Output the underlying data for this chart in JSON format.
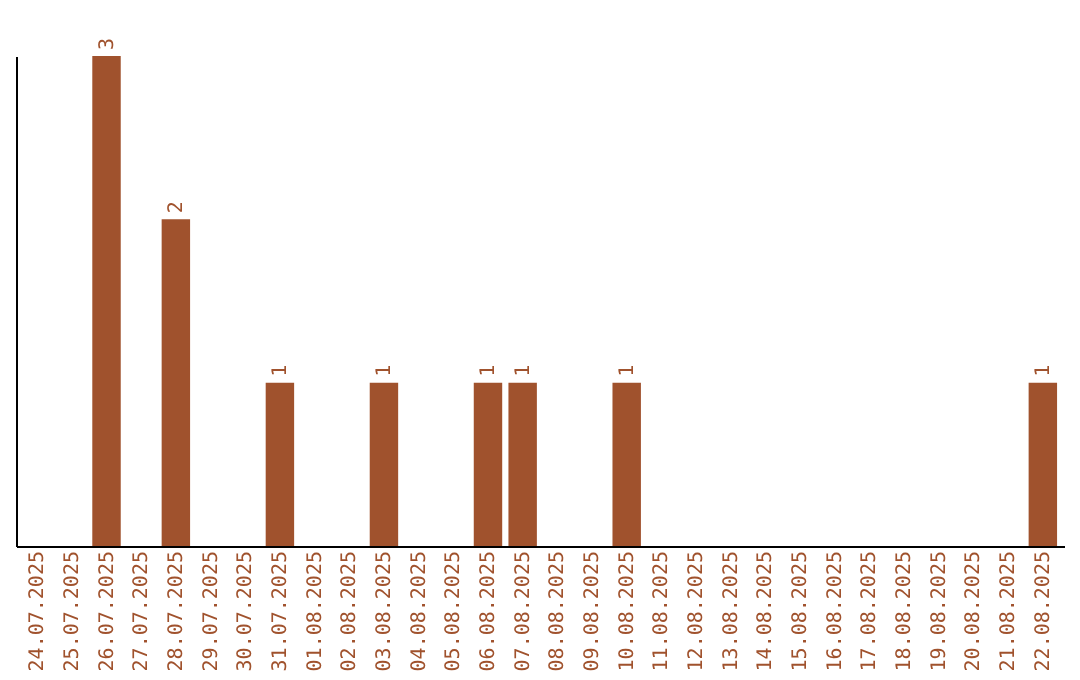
{
  "chart_data": {
    "type": "bar",
    "categories": [
      "24.07.2025",
      "25.07.2025",
      "26.07.2025",
      "27.07.2025",
      "28.07.2025",
      "29.07.2025",
      "30.07.2025",
      "31.07.2025",
      "01.08.2025",
      "02.08.2025",
      "03.08.2025",
      "04.08.2025",
      "05.08.2025",
      "06.08.2025",
      "07.08.2025",
      "08.08.2025",
      "09.08.2025",
      "10.08.2025",
      "11.08.2025",
      "12.08.2025",
      "13.08.2025",
      "14.08.2025",
      "15.08.2025",
      "16.08.2025",
      "17.08.2025",
      "18.08.2025",
      "19.08.2025",
      "20.08.2025",
      "21.08.2025",
      "22.08.2025"
    ],
    "values": [
      0,
      0,
      3,
      0,
      2,
      0,
      0,
      1,
      0,
      0,
      1,
      0,
      0,
      1,
      1,
      0,
      0,
      1,
      0,
      0,
      0,
      0,
      0,
      0,
      0,
      0,
      0,
      0,
      0,
      1
    ],
    "value_labels": [
      null,
      null,
      "3",
      null,
      "2",
      null,
      null,
      "1",
      null,
      null,
      "1",
      null,
      null,
      "1",
      "1",
      null,
      null,
      "1",
      null,
      null,
      null,
      null,
      null,
      null,
      null,
      null,
      null,
      null,
      null,
      "1"
    ],
    "color": "#a0522d",
    "ylim": [
      0,
      3
    ],
    "tick_labels": "x",
    "grid": false
  }
}
